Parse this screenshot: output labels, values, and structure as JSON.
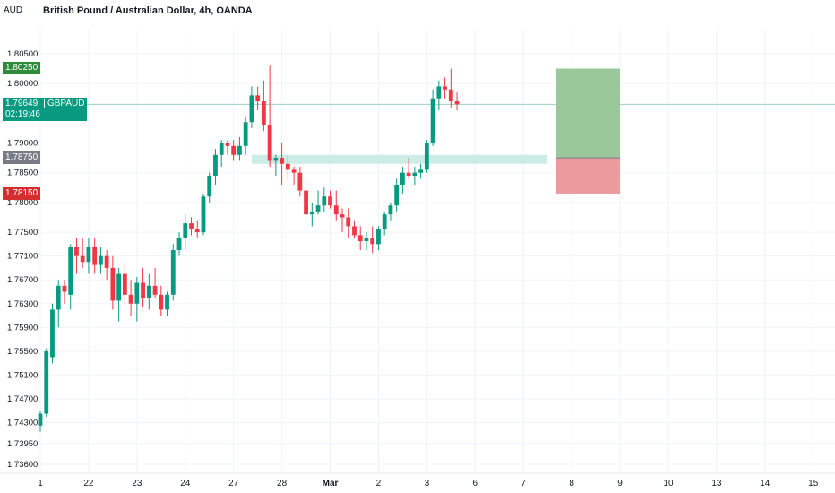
{
  "header": {
    "currency": "AUD",
    "title": "British Pound / Australian Dollar, 4h, OANDA"
  },
  "badges": {
    "target": "1.80250",
    "price": "1.79649",
    "countdown": "02:19:46",
    "symbol": "GBPAUD",
    "entry": "1.78750",
    "stop": "1.78150"
  },
  "colors": {
    "up": "#089981",
    "down": "#f23645",
    "target_zone": "#9ac89b",
    "stop_zone": "#eb9a9e",
    "support_zone": "#cdece5",
    "entry_badge": "#787b86",
    "target_badge": "#2e8b3a",
    "stop_badge": "#d32f2f"
  },
  "chart_data": {
    "type": "candlestick",
    "symbol": "GBPAUD",
    "timeframe": "4h",
    "ylim": [
      1.7348,
      1.8092
    ],
    "y_ticks": [
      "1.80500",
      "1.80000",
      "1.79000",
      "1.78500",
      "1.78000",
      "1.77500",
      "1.77100",
      "1.76700",
      "1.76300",
      "1.75900",
      "1.75500",
      "1.75100",
      "1.74700",
      "1.74300",
      "1.73950",
      "1.73600"
    ],
    "x_ticks": [
      {
        "label": "1",
        "bar": 0
      },
      {
        "label": "22",
        "bar": 8
      },
      {
        "label": "23",
        "bar": 16
      },
      {
        "label": "24",
        "bar": 24
      },
      {
        "label": "27",
        "bar": 32
      },
      {
        "label": "28",
        "bar": 40
      },
      {
        "label": "Mar",
        "bar": 48
      },
      {
        "label": "2",
        "bar": 56
      },
      {
        "label": "3",
        "bar": 64
      },
      {
        "label": "6",
        "bar": 72
      },
      {
        "label": "7",
        "bar": 80
      },
      {
        "label": "8",
        "bar": 88
      },
      {
        "label": "9",
        "bar": 96
      },
      {
        "label": "10",
        "bar": 104
      },
      {
        "label": "13",
        "bar": 112
      },
      {
        "label": "14",
        "bar": 120
      },
      {
        "label": "15",
        "bar": 128
      }
    ],
    "candles": [
      [
        1.7425,
        1.745,
        1.7415,
        1.7445
      ],
      [
        1.7445,
        1.7555,
        1.744,
        1.755
      ],
      [
        1.754,
        1.763,
        1.753,
        1.762
      ],
      [
        1.762,
        1.767,
        1.759,
        1.766
      ],
      [
        1.766,
        1.767,
        1.763,
        1.765
      ],
      [
        1.7645,
        1.773,
        1.762,
        1.7725
      ],
      [
        1.7725,
        1.774,
        1.768,
        1.771
      ],
      [
        1.771,
        1.774,
        1.769,
        1.77
      ],
      [
        1.77,
        1.774,
        1.768,
        1.7725
      ],
      [
        1.7725,
        1.774,
        1.768,
        1.7695
      ],
      [
        1.7695,
        1.7725,
        1.768,
        1.771
      ],
      [
        1.771,
        1.772,
        1.767,
        1.769
      ],
      [
        1.769,
        1.771,
        1.762,
        1.7635
      ],
      [
        1.7635,
        1.769,
        1.76,
        1.768
      ],
      [
        1.768,
        1.77,
        1.763,
        1.7645
      ],
      [
        1.7645,
        1.767,
        1.761,
        1.763
      ],
      [
        1.763,
        1.7675,
        1.76,
        1.7665
      ],
      [
        1.7665,
        1.769,
        1.7625,
        1.764
      ],
      [
        1.764,
        1.768,
        1.762,
        1.766
      ],
      [
        1.766,
        1.769,
        1.764,
        1.7645
      ],
      [
        1.7645,
        1.766,
        1.761,
        1.762
      ],
      [
        1.762,
        1.765,
        1.761,
        1.7645
      ],
      [
        1.7645,
        1.773,
        1.7635,
        1.772
      ],
      [
        1.772,
        1.775,
        1.771,
        1.774
      ],
      [
        1.774,
        1.778,
        1.772,
        1.7765
      ],
      [
        1.7765,
        1.7775,
        1.7745,
        1.7755
      ],
      [
        1.7755,
        1.777,
        1.774,
        1.775
      ],
      [
        1.775,
        1.7815,
        1.7745,
        1.781
      ],
      [
        1.781,
        1.785,
        1.78,
        1.7845
      ],
      [
        1.7845,
        1.789,
        1.783,
        1.788
      ],
      [
        1.788,
        1.7905,
        1.786,
        1.79
      ],
      [
        1.79,
        1.7905,
        1.788,
        1.7895
      ],
      [
        1.7895,
        1.7905,
        1.787,
        1.788
      ],
      [
        1.788,
        1.791,
        1.787,
        1.7895
      ],
      [
        1.7895,
        1.7945,
        1.788,
        1.7935
      ],
      [
        1.7935,
        1.7995,
        1.7925,
        1.798
      ],
      [
        1.798,
        1.7995,
        1.7955,
        1.797
      ],
      [
        1.797,
        1.8005,
        1.792,
        1.793
      ],
      [
        1.793,
        1.803,
        1.786,
        1.787
      ],
      [
        1.787,
        1.788,
        1.7845,
        1.7875
      ],
      [
        1.7875,
        1.79,
        1.783,
        1.7865
      ],
      [
        1.7865,
        1.788,
        1.784,
        1.7855
      ],
      [
        1.7855,
        1.786,
        1.783,
        1.785
      ],
      [
        1.785,
        1.786,
        1.781,
        1.782
      ],
      [
        1.782,
        1.784,
        1.777,
        1.778
      ],
      [
        1.778,
        1.78,
        1.776,
        1.7785
      ],
      [
        1.7785,
        1.782,
        1.778,
        1.7795
      ],
      [
        1.7795,
        1.7825,
        1.7785,
        1.781
      ],
      [
        1.781,
        1.782,
        1.779,
        1.7795
      ],
      [
        1.7795,
        1.782,
        1.777,
        1.778
      ],
      [
        1.778,
        1.779,
        1.775,
        1.7775
      ],
      [
        1.7775,
        1.779,
        1.774,
        1.776
      ],
      [
        1.776,
        1.777,
        1.774,
        1.7745
      ],
      [
        1.7745,
        1.776,
        1.772,
        1.7735
      ],
      [
        1.7735,
        1.775,
        1.772,
        1.774
      ],
      [
        1.774,
        1.776,
        1.7715,
        1.773
      ],
      [
        1.773,
        1.776,
        1.772,
        1.7755
      ],
      [
        1.7755,
        1.7785,
        1.7745,
        1.778
      ],
      [
        1.778,
        1.78,
        1.777,
        1.7795
      ],
      [
        1.7795,
        1.784,
        1.7785,
        1.783
      ],
      [
        1.783,
        1.786,
        1.7815,
        1.785
      ],
      [
        1.785,
        1.7875,
        1.784,
        1.7845
      ],
      [
        1.7845,
        1.786,
        1.783,
        1.785
      ],
      [
        1.785,
        1.7865,
        1.784,
        1.7855
      ],
      [
        1.7855,
        1.7905,
        1.785,
        1.79
      ],
      [
        1.79,
        1.799,
        1.7895,
        1.7975
      ],
      [
        1.7975,
        1.8005,
        1.7955,
        1.7995
      ],
      [
        1.7995,
        1.801,
        1.7975,
        1.799
      ],
      [
        1.799,
        1.8025,
        1.796,
        1.797
      ],
      [
        1.797,
        1.7985,
        1.7955,
        1.7965
      ]
    ],
    "current_price": 1.79649,
    "entry": 1.7875,
    "target": 1.8025,
    "stop": 1.7815,
    "support_zone": [
      1.7865,
      1.788
    ]
  }
}
